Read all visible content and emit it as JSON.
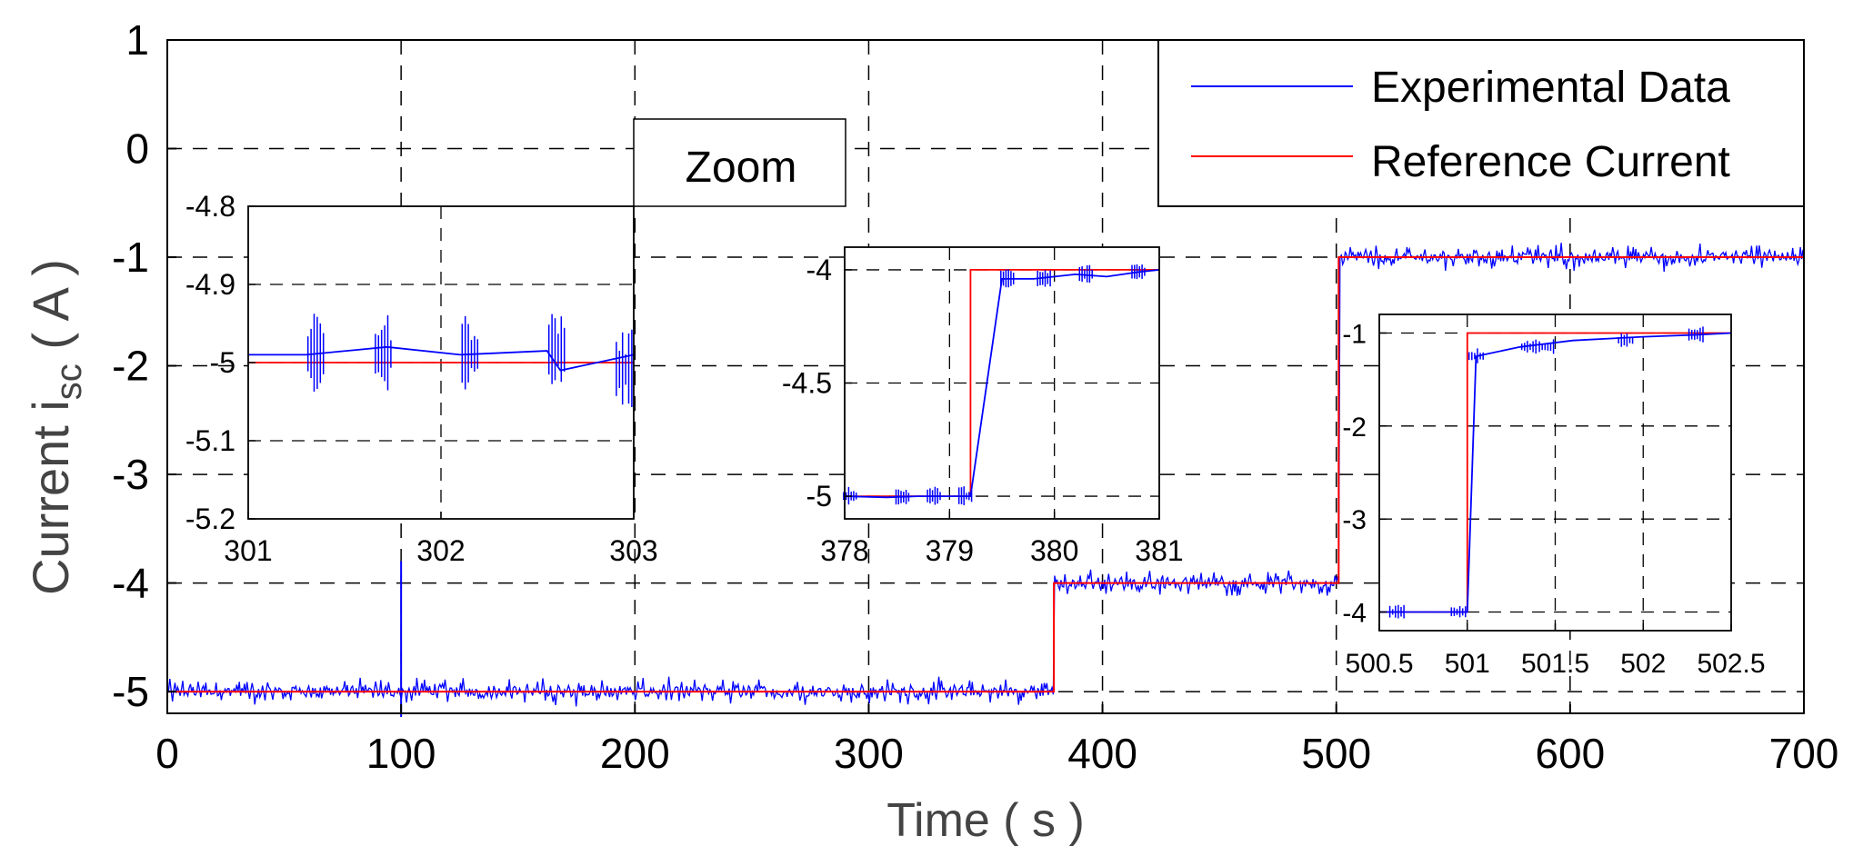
{
  "chart_data": {
    "type": "line",
    "xlabel": "Time ( s )",
    "ylabel_prefix": "Current i",
    "ylabel_sub": "sc",
    "ylabel_suffix": " ( A )",
    "xlim": [
      0,
      700
    ],
    "ylim": [
      -5.2,
      1
    ],
    "xticks": [
      0,
      100,
      200,
      300,
      400,
      500,
      600,
      700
    ],
    "yticks": [
      1,
      0,
      -1,
      -2,
      -3,
      -4,
      -5
    ],
    "grid": true,
    "legend": {
      "position": "top-right",
      "entries": [
        {
          "label": "Experimental Data",
          "color": "#0000ff"
        },
        {
          "label": "Reference Current",
          "color": "#ff0000"
        }
      ]
    },
    "series": [
      {
        "name": "Reference Current",
        "color": "#ff0000",
        "x": [
          0,
          379.2,
          379.2,
          501,
          501,
          700
        ],
        "y": [
          -5,
          -5,
          -4,
          -4,
          -1,
          -1
        ]
      },
      {
        "name": "Experimental Data",
        "color": "#0000ff",
        "noise": 0.1,
        "x": [
          0,
          379.2,
          379.2,
          501,
          501,
          700
        ],
        "y": [
          -5,
          -5,
          -4,
          -4,
          -1,
          -1
        ],
        "spike": {
          "x": 100,
          "ymin": -5.2,
          "ymax": -3.8
        }
      }
    ],
    "zoom_label": "Zoom",
    "insets": [
      {
        "name": "inset-1",
        "xlim": [
          301,
          303
        ],
        "ylim": [
          -5.2,
          -4.8
        ],
        "xticks": [
          301,
          302,
          303
        ],
        "yticks": [
          -4.8,
          -4.9,
          -5,
          -5.1,
          -5.2
        ],
        "ref": {
          "x": [
            301,
            303
          ],
          "y": [
            -5,
            -5
          ]
        },
        "exp": {
          "x": [
            301,
            301.3,
            301.72,
            302.1,
            302.55,
            302.62,
            303
          ],
          "y": [
            -4.99,
            -4.99,
            -4.98,
            -4.99,
            -4.985,
            -5.01,
            -4.99
          ]
        },
        "bursts": [
          301.35,
          301.7,
          302.15,
          302.6,
          302.95
        ],
        "burst_amp": 0.035
      },
      {
        "name": "inset-2",
        "xlim": [
          378,
          381
        ],
        "ylim": [
          -5.1,
          -3.9
        ],
        "xticks": [
          378,
          379,
          380,
          381
        ],
        "yticks": [
          -4,
          -4.5,
          -5
        ],
        "ref": {
          "x": [
            378,
            379.2,
            379.2,
            381
          ],
          "y": [
            -5,
            -5,
            -4,
            -4
          ]
        },
        "exp": {
          "x": [
            378,
            378.4,
            378.7,
            379.2,
            379.5,
            379.8,
            380.0,
            380.2,
            380.5,
            380.8,
            381
          ],
          "y": [
            -5,
            -5.005,
            -5,
            -5,
            -4.04,
            -4.04,
            -4.03,
            -4.02,
            -4.03,
            -4.01,
            -4
          ]
        },
        "bursts": [
          378.05,
          378.55,
          378.85,
          379.15,
          379.55,
          379.9,
          380.3,
          380.8
        ],
        "burst_amp": 0.03
      },
      {
        "name": "inset-3",
        "xlim": [
          500.5,
          502.5
        ],
        "ylim": [
          -4.2,
          -0.8
        ],
        "xticks": [
          500.5,
          501,
          501.5,
          502,
          502.5
        ],
        "yticks": [
          -1,
          -2,
          -3,
          -4
        ],
        "ref": {
          "x": [
            500.5,
            501,
            501,
            502.5
          ],
          "y": [
            -4,
            -4,
            -1,
            -1
          ]
        },
        "exp": {
          "x": [
            500.5,
            500.9,
            501,
            501.05,
            501.3,
            501.6,
            502.0,
            502.3,
            502.5
          ],
          "y": [
            -4,
            -4,
            -4,
            -1.25,
            -1.15,
            -1.08,
            -1.04,
            -1.02,
            -1.0
          ]
        },
        "bursts": [
          500.6,
          500.95,
          501.05,
          501.35,
          501.45,
          501.9,
          502.3
        ],
        "burst_amp": 0.06
      }
    ]
  }
}
